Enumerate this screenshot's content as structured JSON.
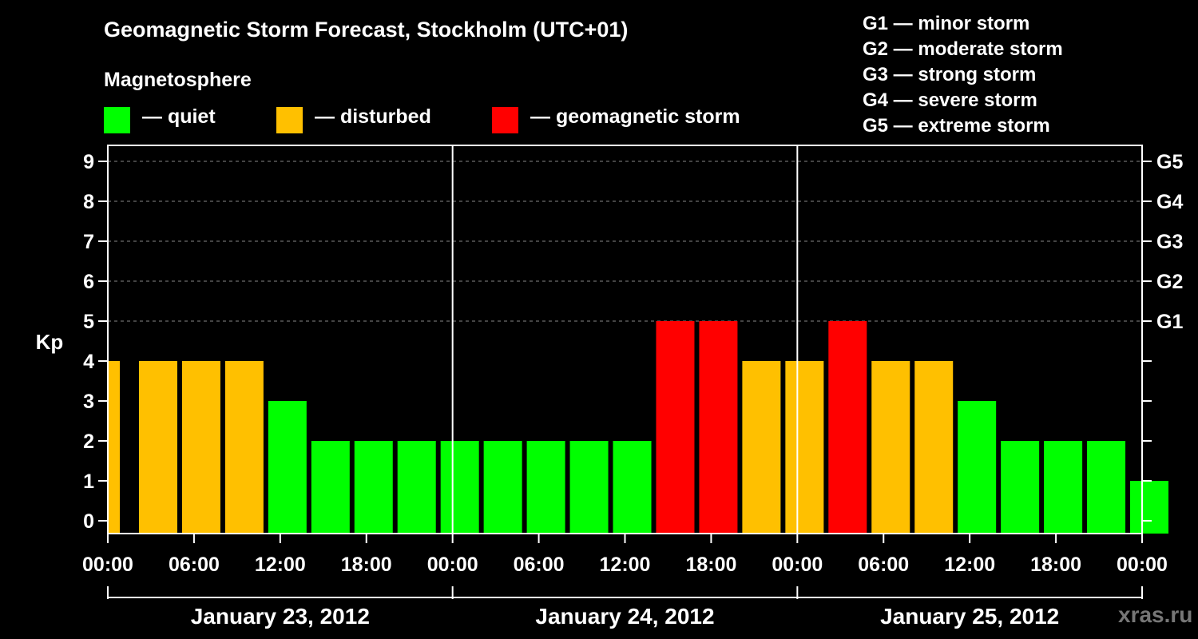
{
  "title": "Geomagnetic Storm Forecast, Stockholm (UTC+01)",
  "subtitle": "Magnetosphere",
  "legend": [
    {
      "label": "— quiet",
      "color": "#00FF00"
    },
    {
      "label": "— disturbed",
      "color": "#FFC000"
    },
    {
      "label": "— geomagnetic storm",
      "color": "#FF0000"
    }
  ],
  "storm_scale": [
    "G1 — minor storm",
    "G2 — moderate storm",
    "G3 — strong storm",
    "G4 — severe storm",
    "G5 — extreme storm"
  ],
  "watermark": "xras.ru",
  "chart_data": {
    "type": "bar",
    "ylabel": "Kp",
    "ylim": [
      0,
      9
    ],
    "y_ticks": [
      "0",
      "1",
      "2",
      "3",
      "4",
      "5",
      "6",
      "7",
      "8",
      "9"
    ],
    "right_ticks": [
      {
        "value": 5,
        "label": "G1"
      },
      {
        "value": 6,
        "label": "G2"
      },
      {
        "value": 7,
        "label": "G3"
      },
      {
        "value": 8,
        "label": "G4"
      },
      {
        "value": 9,
        "label": "G5"
      }
    ],
    "x_tick_labels": [
      "00:00",
      "06:00",
      "12:00",
      "18:00",
      "00:00",
      "06:00",
      "12:00",
      "18:00",
      "00:00",
      "06:00",
      "12:00",
      "18:00",
      "00:00"
    ],
    "days": [
      "January 23, 2012",
      "January 24, 2012",
      "January 25, 2012"
    ],
    "grid": true,
    "bar_hours": [
      0,
      2,
      5,
      8,
      11,
      14,
      17,
      20,
      23,
      26,
      29,
      32,
      35,
      38,
      41,
      44,
      47,
      50,
      53,
      56,
      59,
      62,
      65,
      68,
      71
    ],
    "values": [
      4,
      4,
      4,
      4,
      3,
      2,
      2,
      2,
      2,
      2,
      2,
      2,
      2,
      5,
      5,
      4,
      4,
      5,
      4,
      4,
      3,
      2,
      2,
      2,
      1
    ],
    "colors": {
      "quiet": "#00FF00",
      "disturbed": "#FFC000",
      "storm": "#FF0000"
    }
  }
}
